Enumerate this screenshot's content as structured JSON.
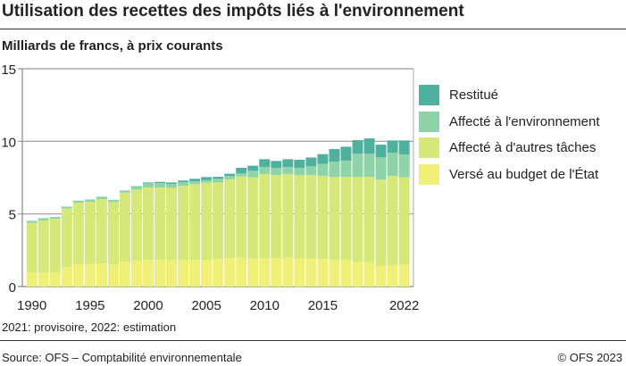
{
  "title": "Utilisation des recettes des impôts liés à l'environnement",
  "subtitle": "Milliards de francs, à prix courants",
  "note": "2021: provisoire, 2022: estimation",
  "source": "Source: OFS – Comptabilité environnementale",
  "copyright": "© OFS 2023",
  "chart_data": {
    "type": "bar",
    "stacked": true,
    "ylim": [
      0,
      15
    ],
    "yticks": [
      0,
      5,
      10,
      15
    ],
    "xtick_labels": [
      "1990",
      "1995",
      "2000",
      "2005",
      "2010",
      "2015",
      "2022"
    ],
    "grid": true,
    "legend_placement": "right",
    "categories": [
      1990,
      1991,
      1992,
      1993,
      1994,
      1995,
      1996,
      1997,
      1998,
      1999,
      2000,
      2001,
      2002,
      2003,
      2004,
      2005,
      2006,
      2007,
      2008,
      2009,
      2010,
      2011,
      2012,
      2013,
      2014,
      2015,
      2016,
      2017,
      2018,
      2019,
      2020,
      2021,
      2022
    ],
    "series": [
      {
        "name": "Versé au budget de l'État",
        "color": "#f0ef78",
        "values": [
          0.96,
          0.96,
          0.96,
          1.35,
          1.54,
          1.54,
          1.58,
          1.52,
          1.72,
          1.8,
          1.84,
          1.84,
          1.82,
          1.82,
          1.84,
          1.84,
          1.89,
          1.95,
          1.99,
          1.93,
          1.95,
          1.95,
          1.99,
          1.93,
          1.91,
          1.89,
          1.82,
          1.82,
          1.7,
          1.7,
          1.43,
          1.48,
          1.52
        ]
      },
      {
        "name": "Affecté à d'autres tâches",
        "color": "#d4e97a",
        "values": [
          3.43,
          3.59,
          3.71,
          4.02,
          4.24,
          4.3,
          4.44,
          4.3,
          4.76,
          4.88,
          4.98,
          4.98,
          4.98,
          5.11,
          5.21,
          5.33,
          5.28,
          5.43,
          5.59,
          5.59,
          5.8,
          5.73,
          5.76,
          5.73,
          5.77,
          5.73,
          5.74,
          5.74,
          5.86,
          5.86,
          5.93,
          6.14,
          6.0
        ]
      },
      {
        "name": "Affecté à l'environnement",
        "color": "#8fd3a8",
        "values": [
          0.14,
          0.16,
          0.13,
          0.14,
          0.14,
          0.16,
          0.17,
          0.16,
          0.14,
          0.22,
          0.29,
          0.31,
          0.27,
          0.26,
          0.2,
          0.16,
          0.25,
          0.24,
          0.21,
          0.45,
          0.49,
          0.48,
          0.49,
          0.52,
          0.6,
          0.82,
          1.03,
          1.11,
          1.58,
          1.58,
          1.53,
          1.6,
          1.58
        ]
      },
      {
        "name": "Restitué",
        "color": "#4fb09e",
        "values": [
          0,
          0,
          0,
          0,
          0,
          0,
          0,
          0,
          0,
          0.02,
          0.06,
          0.08,
          0.1,
          0.11,
          0.17,
          0.21,
          0.14,
          0.15,
          0.39,
          0.35,
          0.53,
          0.49,
          0.53,
          0.55,
          0.61,
          0.68,
          0.88,
          0.96,
          0.94,
          1.06,
          0.88,
          0.84,
          0.96
        ]
      }
    ],
    "legend_order": [
      "Restitué",
      "Affecté à l'environnement",
      "Affecté à d'autres tâches",
      "Versé au budget de l'État"
    ]
  }
}
